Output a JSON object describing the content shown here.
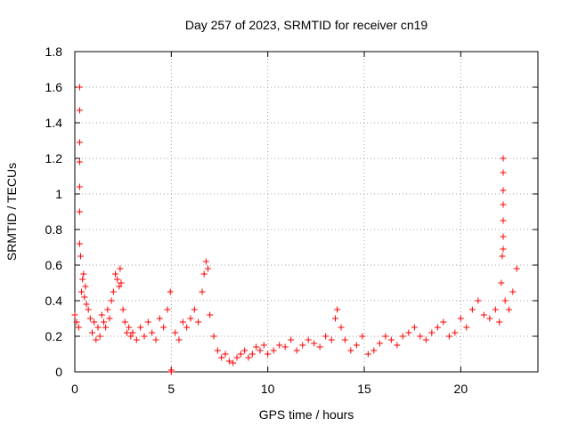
{
  "chart_data": {
    "type": "scatter",
    "title": "Day 257 of 2023, SRMTID for receiver cn19",
    "xlabel": "GPS time / hours",
    "ylabel": "SRMTID / TECUs",
    "xlim": [
      0,
      24
    ],
    "ylim": [
      0,
      1.8
    ],
    "x_ticks": [
      0,
      5,
      10,
      15,
      20
    ],
    "x_tick_labels": [
      "0",
      "5",
      "10",
      "15",
      "20"
    ],
    "y_ticks": [
      0,
      0.2,
      0.4,
      0.6,
      0.8,
      1.0,
      1.2,
      1.4,
      1.6,
      1.8
    ],
    "y_tick_labels": [
      "0",
      "0.2",
      "0.4",
      "0.6",
      "0.8",
      "1",
      "1.2",
      "1.4",
      "1.6",
      "1.8"
    ],
    "grid": true,
    "marker": "+",
    "color": "#ff0000",
    "series": [
      {
        "name": "SRMTID",
        "x": [
          0.0,
          0.1,
          0.2,
          0.25,
          0.25,
          0.25,
          0.25,
          0.25,
          0.25,
          0.25,
          0.3,
          0.35,
          0.4,
          0.45,
          0.5,
          0.55,
          0.6,
          0.7,
          0.8,
          0.9,
          1.0,
          1.1,
          1.2,
          1.3,
          1.4,
          1.5,
          1.6,
          1.7,
          1.8,
          1.9,
          2.0,
          2.1,
          2.2,
          2.3,
          2.35,
          2.4,
          2.5,
          2.6,
          2.7,
          2.8,
          2.9,
          3.0,
          3.2,
          3.4,
          3.6,
          3.8,
          4.0,
          4.2,
          4.4,
          4.6,
          4.8,
          4.95,
          5.0,
          5.0,
          5.2,
          5.4,
          5.6,
          5.8,
          6.0,
          6.2,
          6.4,
          6.6,
          6.7,
          6.8,
          6.9,
          7.0,
          7.2,
          7.4,
          7.6,
          7.8,
          8.0,
          8.2,
          8.4,
          8.6,
          8.8,
          9.0,
          9.2,
          9.4,
          9.6,
          9.8,
          10.0,
          10.3,
          10.6,
          10.9,
          11.2,
          11.5,
          11.8,
          12.1,
          12.4,
          12.7,
          13.0,
          13.3,
          13.5,
          13.6,
          13.8,
          14.0,
          14.3,
          14.6,
          14.9,
          15.2,
          15.5,
          15.8,
          16.1,
          16.4,
          16.7,
          17.0,
          17.3,
          17.6,
          17.9,
          18.2,
          18.5,
          18.8,
          19.1,
          19.4,
          19.7,
          20.0,
          20.3,
          20.6,
          20.9,
          21.2,
          21.5,
          21.8,
          22.0,
          22.1,
          22.15,
          22.2,
          22.2,
          22.2,
          22.2,
          22.2,
          22.2,
          22.2,
          22.3,
          22.5,
          22.7,
          22.9
        ],
        "y": [
          0.32,
          0.28,
          0.25,
          0.9,
          1.04,
          1.18,
          1.29,
          1.47,
          1.6,
          0.72,
          0.65,
          0.45,
          0.52,
          0.55,
          0.42,
          0.48,
          0.38,
          0.35,
          0.3,
          0.22,
          0.28,
          0.18,
          0.25,
          0.2,
          0.32,
          0.28,
          0.25,
          0.35,
          0.3,
          0.4,
          0.45,
          0.55,
          0.52,
          0.48,
          0.58,
          0.5,
          0.35,
          0.28,
          0.22,
          0.25,
          0.2,
          0.22,
          0.18,
          0.25,
          0.2,
          0.28,
          0.22,
          0.18,
          0.3,
          0.25,
          0.35,
          0.45,
          0.0,
          0.01,
          0.22,
          0.18,
          0.28,
          0.25,
          0.3,
          0.35,
          0.28,
          0.45,
          0.55,
          0.62,
          0.58,
          0.32,
          0.2,
          0.12,
          0.08,
          0.1,
          0.06,
          0.05,
          0.08,
          0.1,
          0.12,
          0.08,
          0.1,
          0.14,
          0.12,
          0.15,
          0.1,
          0.12,
          0.15,
          0.14,
          0.18,
          0.12,
          0.15,
          0.18,
          0.16,
          0.14,
          0.2,
          0.18,
          0.3,
          0.35,
          0.25,
          0.18,
          0.12,
          0.15,
          0.2,
          0.1,
          0.12,
          0.16,
          0.2,
          0.18,
          0.15,
          0.2,
          0.22,
          0.25,
          0.2,
          0.18,
          0.22,
          0.25,
          0.28,
          0.2,
          0.22,
          0.3,
          0.25,
          0.35,
          0.4,
          0.32,
          0.3,
          0.35,
          0.28,
          0.5,
          0.65,
          1.2,
          1.12,
          1.02,
          0.94,
          0.85,
          0.76,
          0.69,
          0.4,
          0.35,
          0.45,
          0.58
        ]
      }
    ]
  }
}
